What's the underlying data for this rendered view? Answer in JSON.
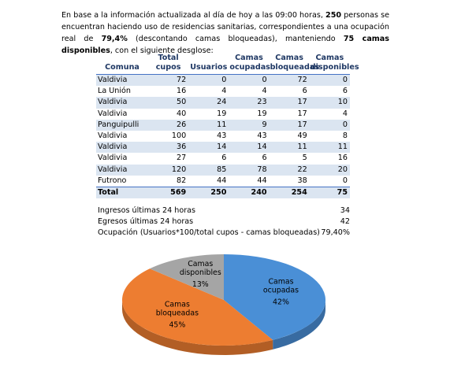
{
  "intro": [
    "En base a la información actualizada al día de hoy a las 09:00 horas, ",
    "250",
    " personas se encuentran haciendo uso de residencias sanitarias, correspondientes a una ocupación real de ",
    "79,4%",
    " (descontando camas bloqueadas), manteniendo ",
    "75 camas disponibles",
    ", con el siguiente desglose:"
  ],
  "table": {
    "header": [
      "Comuna",
      "Total cupos",
      "Usuarios",
      "Camas ocupadas",
      "Camas bloqueadas",
      "Camas disponibles"
    ],
    "rows": [
      [
        "Valdivia",
        72,
        0,
        0,
        72,
        0
      ],
      [
        "La Unión",
        16,
        4,
        4,
        6,
        6
      ],
      [
        "Valdivia",
        50,
        24,
        23,
        17,
        10
      ],
      [
        "Valdivia",
        40,
        19,
        19,
        17,
        4
      ],
      [
        "Panguipulli",
        26,
        11,
        9,
        17,
        0
      ],
      [
        "Valdivia",
        100,
        43,
        43,
        49,
        8
      ],
      [
        "Valdivia",
        36,
        14,
        14,
        11,
        11
      ],
      [
        "Valdivia",
        27,
        6,
        6,
        5,
        16
      ],
      [
        "Valdivia",
        120,
        85,
        78,
        22,
        20
      ],
      [
        "Futrono",
        82,
        44,
        44,
        38,
        0
      ]
    ],
    "total": [
      "Total",
      569,
      250,
      240,
      254,
      75
    ]
  },
  "summary": [
    [
      "Ingresos últimas 24 horas",
      34
    ],
    [
      "Egresos últimas 24 horas",
      42
    ],
    [
      "Ocupación (Usuarios*100/total cupos - camas bloqueadas)",
      "79,40%"
    ]
  ],
  "chart_data": {
    "type": "pie",
    "categories": [
      "Camas ocupadas",
      "Camas bloqueadas",
      "Camas disponibles"
    ],
    "values": [
      42,
      45,
      13
    ],
    "value_labels": [
      "42%",
      "45%",
      "13%"
    ],
    "colors": [
      "#4a8fd6",
      "#ed7d31",
      "#a5a5a5"
    ]
  }
}
